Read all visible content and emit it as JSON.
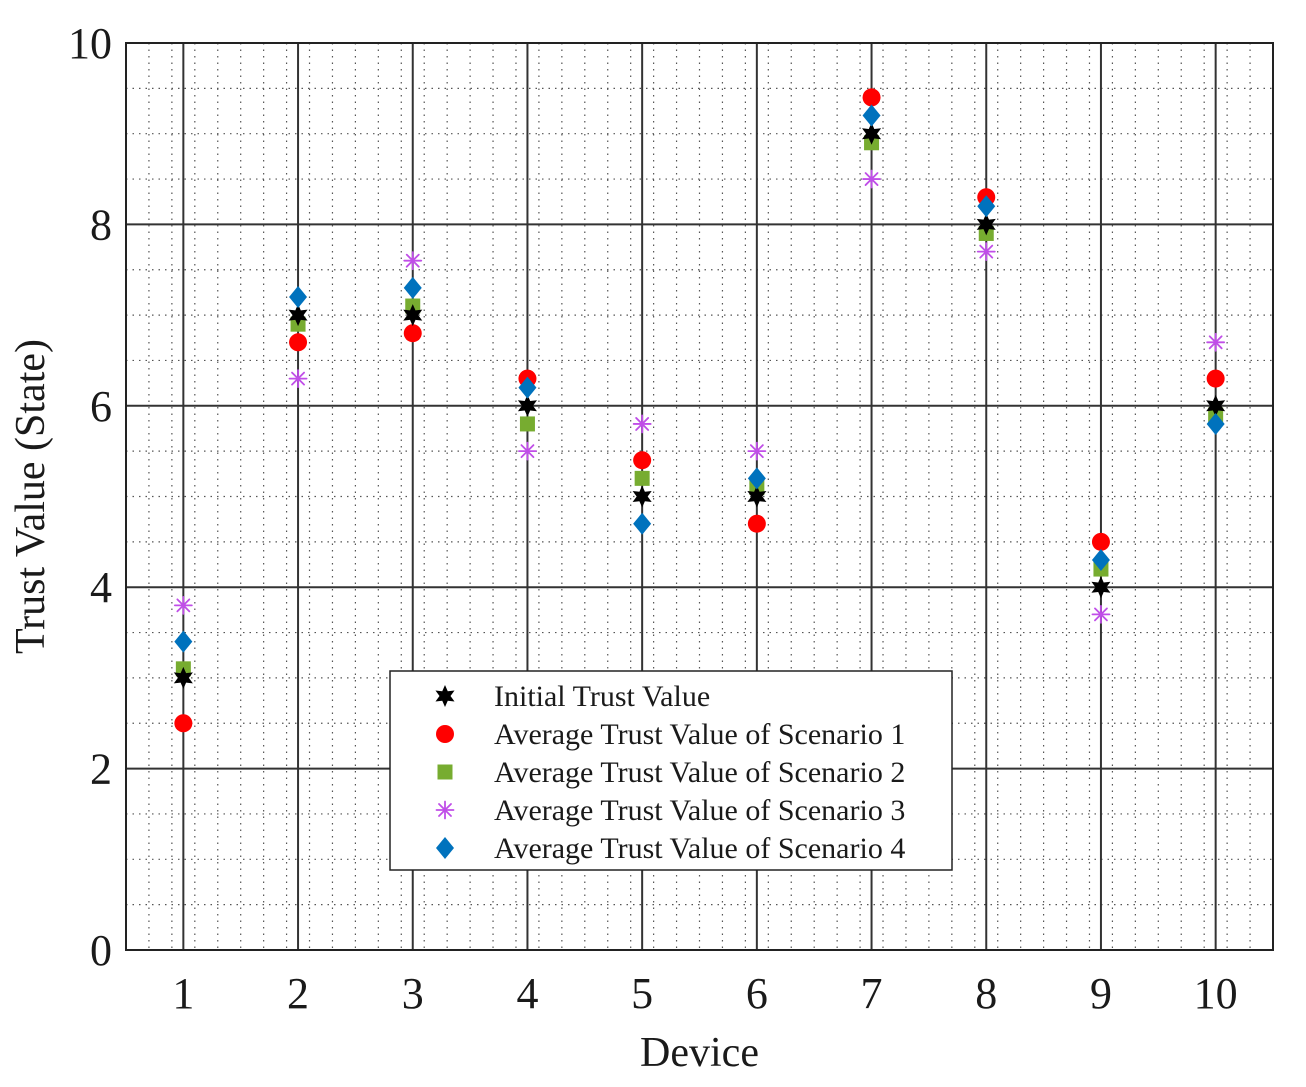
{
  "chart_data": {
    "type": "scatter",
    "xlabel": "Device",
    "ylabel": "Trust Value (State)",
    "x": [
      1,
      2,
      3,
      4,
      5,
      6,
      7,
      8,
      9,
      10
    ],
    "xlim": [
      0.5,
      10.5
    ],
    "ylim": [
      0,
      10
    ],
    "xticks": [
      "1",
      "2",
      "3",
      "4",
      "5",
      "6",
      "7",
      "8",
      "9",
      "10"
    ],
    "yticks": [
      "0",
      "2",
      "4",
      "6",
      "8",
      "10"
    ],
    "grid": true,
    "legend_position": "bottom-center",
    "series": [
      {
        "name": "Initial Trust Value",
        "marker": "hexagram",
        "color": "#000000",
        "values": [
          3,
          7,
          7,
          6,
          5,
          5,
          9,
          8,
          4,
          6
        ]
      },
      {
        "name": "Average Trust Value of Scenario 1",
        "marker": "circle",
        "color": "#ff0000",
        "values": [
          2.5,
          6.7,
          6.8,
          6.3,
          5.4,
          4.7,
          9.4,
          8.3,
          4.5,
          6.3
        ]
      },
      {
        "name": "Average Trust Value of Scenario 2",
        "marker": "square",
        "color": "#77ac30",
        "values": [
          3.1,
          6.9,
          7.1,
          5.8,
          5.2,
          5.1,
          8.9,
          7.9,
          4.2,
          5.9
        ]
      },
      {
        "name": "Average Trust Value of Scenario 3",
        "marker": "asterisk",
        "color": "#c04ee8",
        "values": [
          3.8,
          6.3,
          7.6,
          5.5,
          5.8,
          5.5,
          8.5,
          7.7,
          3.7,
          6.7
        ]
      },
      {
        "name": "Average Trust Value of Scenario 4",
        "marker": "diamond",
        "color": "#0072bd",
        "values": [
          3.4,
          7.2,
          7.3,
          6.2,
          4.7,
          5.2,
          9.2,
          8.2,
          4.3,
          5.8
        ]
      }
    ]
  }
}
